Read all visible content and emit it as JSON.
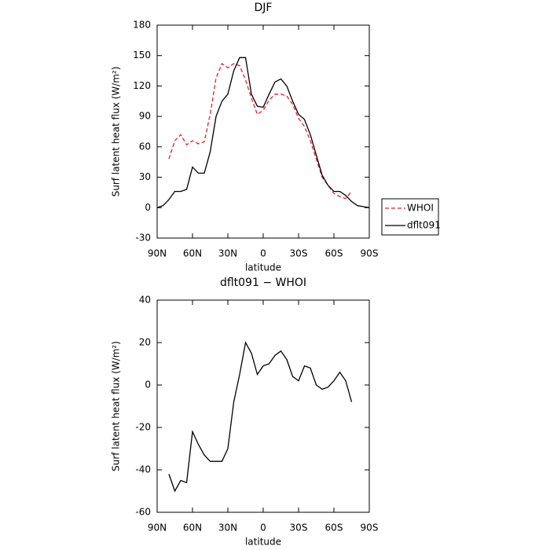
{
  "chart_data": [
    {
      "type": "line",
      "title": "DJF",
      "xlabel": "latitude",
      "ylabel": "Surf latent heat flux (W/m²)",
      "x": [
        90,
        85,
        80,
        75,
        70,
        65,
        60,
        55,
        50,
        45,
        40,
        35,
        30,
        25,
        20,
        15,
        10,
        5,
        0,
        -5,
        -10,
        -15,
        -20,
        -25,
        -30,
        -35,
        -40,
        -45,
        -50,
        -55,
        -60,
        -65,
        -70,
        -75,
        -80,
        -85,
        -90
      ],
      "series": [
        {
          "name": "WHOI",
          "color": "#e8202a",
          "dash": true,
          "values": [
            null,
            null,
            48,
            66,
            72,
            62,
            66,
            63,
            65,
            92,
            128,
            142,
            138,
            142,
            140,
            126,
            108,
            92,
            96,
            106,
            112,
            112,
            110,
            102,
            88,
            80,
            66,
            48,
            30,
            22,
            14,
            11,
            9,
            16,
            null,
            null,
            null
          ]
        },
        {
          "name": "dflt091",
          "color": "#000000",
          "dash": false,
          "values": [
            0,
            2,
            8,
            16,
            16,
            18,
            40,
            34,
            34,
            55,
            90,
            105,
            112,
            135,
            148,
            148,
            112,
            100,
            99,
            112,
            124,
            127,
            120,
            105,
            92,
            87,
            72,
            52,
            32,
            22,
            16,
            16,
            12,
            6,
            2,
            1,
            0
          ]
        }
      ],
      "xlim": [
        90,
        -90
      ],
      "ylim": [
        -30,
        180
      ],
      "xticks": [
        {
          "value": 90,
          "label": "90N"
        },
        {
          "value": 60,
          "label": "60N"
        },
        {
          "value": 30,
          "label": "30N"
        },
        0,
        {
          "value": -30,
          "label": "30S"
        },
        {
          "value": -60,
          "label": "60S"
        },
        {
          "value": -90,
          "label": "90S"
        }
      ],
      "yticks": [
        -30,
        0,
        30,
        60,
        90,
        120,
        150,
        180
      ],
      "legend": "right"
    },
    {
      "type": "line",
      "title": "dflt091 − WHOI",
      "xlabel": "latitude",
      "ylabel": "Surf latent heat flux (W/m²)",
      "x": [
        80,
        75,
        70,
        65,
        60,
        55,
        50,
        45,
        40,
        35,
        30,
        25,
        20,
        15,
        10,
        5,
        0,
        -5,
        -10,
        -15,
        -20,
        -25,
        -30,
        -35,
        -40,
        -45,
        -50,
        -55,
        -60,
        -65,
        -70,
        -75
      ],
      "series": [
        {
          "color": "#000000",
          "dash": false,
          "values": [
            -42,
            -50,
            -45,
            -46,
            -22,
            -28,
            -33,
            -36,
            -36,
            -36,
            -30,
            -8,
            5,
            20,
            15,
            5,
            9,
            10,
            14,
            16,
            12,
            4,
            2,
            9,
            8,
            0,
            -2,
            -1,
            2,
            6,
            2,
            -8
          ]
        }
      ],
      "xlim": [
        90,
        -90
      ],
      "ylim": [
        -60,
        40
      ],
      "xticks": [
        {
          "value": 90,
          "label": "90N"
        },
        {
          "value": 60,
          "label": "60N"
        },
        {
          "value": 30,
          "label": "30N"
        },
        0,
        {
          "value": -30,
          "label": "30S"
        },
        {
          "value": -60,
          "label": "60S"
        },
        {
          "value": -90,
          "label": "90S"
        }
      ],
      "yticks": [
        -60,
        -40,
        -20,
        0,
        20,
        40
      ]
    }
  ]
}
